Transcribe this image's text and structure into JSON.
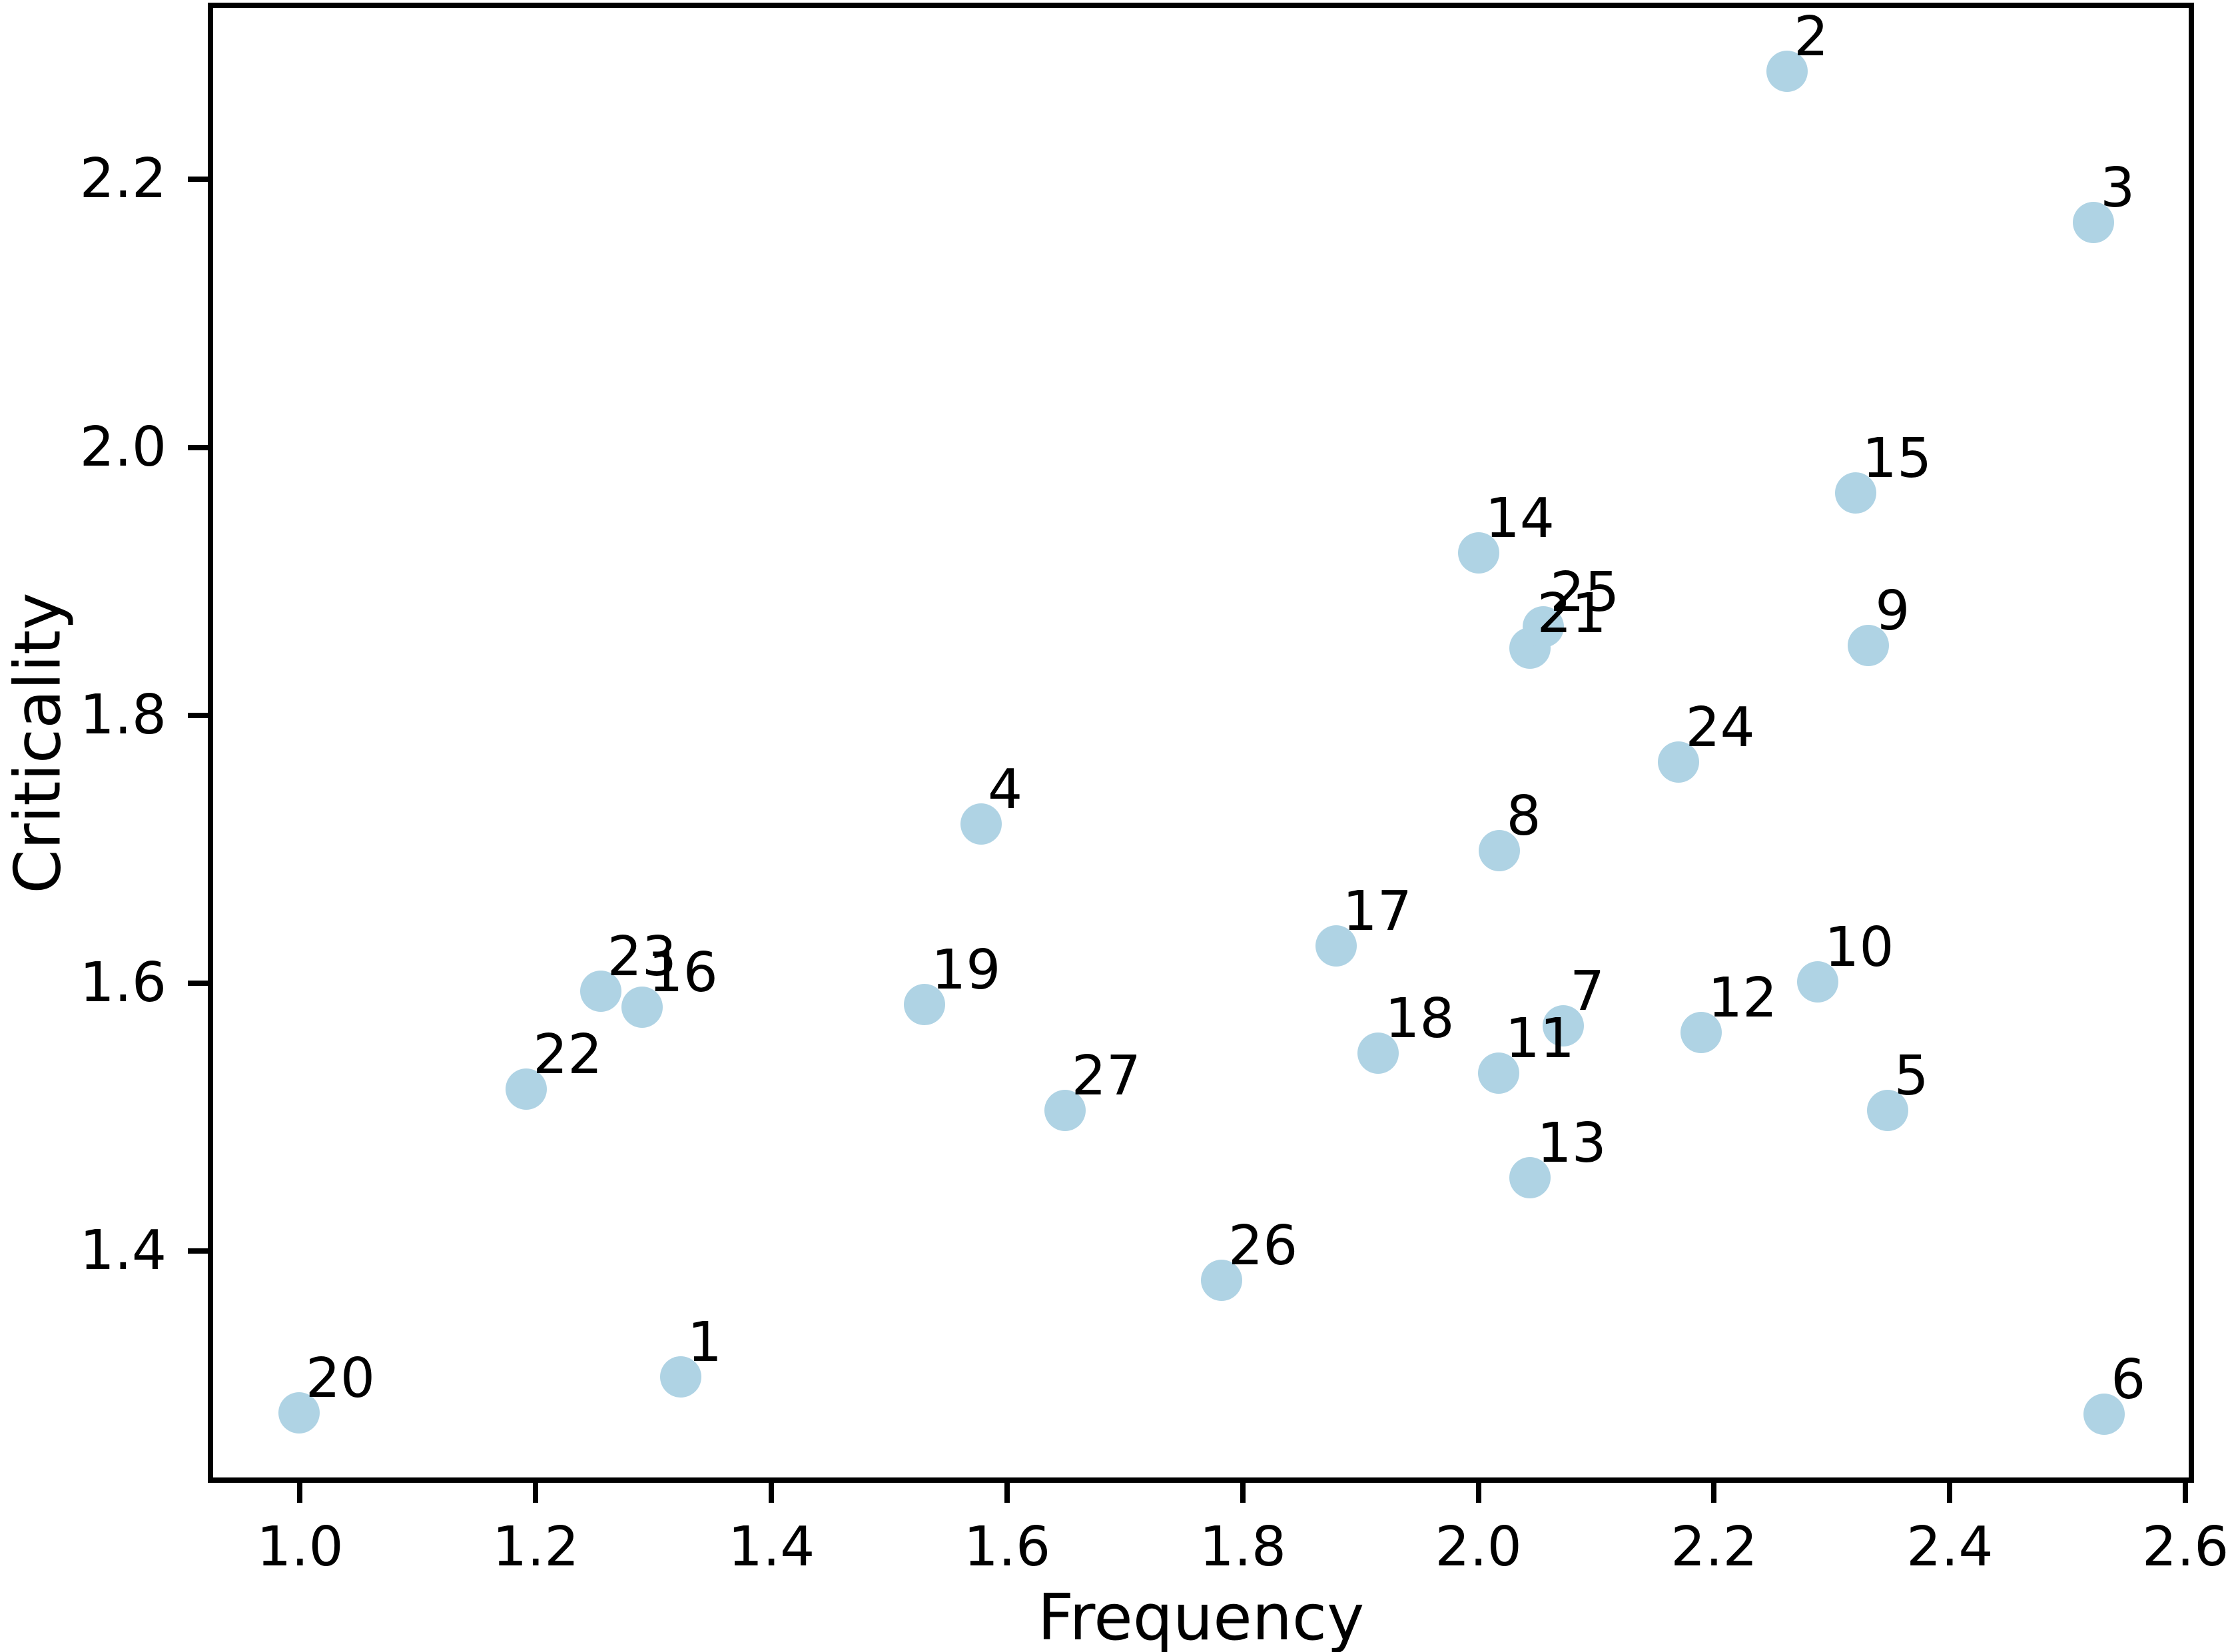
{
  "chart_data": {
    "type": "scatter",
    "title": "",
    "xlabel": "Frequency",
    "ylabel": "Criticality",
    "xlim": [
      0.924,
      2.605
    ],
    "ylim": [
      1.229,
      2.33
    ],
    "grid": false,
    "legend": null,
    "marker": {
      "color": "#afd3e4",
      "radius_px": 31
    },
    "x_ticks": [
      {
        "value": 1.0,
        "label": "1.0"
      },
      {
        "value": 1.2,
        "label": "1.2"
      },
      {
        "value": 1.4,
        "label": "1.4"
      },
      {
        "value": 1.6,
        "label": "1.6"
      },
      {
        "value": 1.8,
        "label": "1.8"
      },
      {
        "value": 2.0,
        "label": "2.0"
      },
      {
        "value": 2.2,
        "label": "2.2"
      },
      {
        "value": 2.4,
        "label": "2.4"
      },
      {
        "value": 2.6,
        "label": "2.6"
      }
    ],
    "y_ticks": [
      {
        "value": 1.4,
        "label": "1.4"
      },
      {
        "value": 1.6,
        "label": "1.6"
      },
      {
        "value": 1.8,
        "label": "1.8"
      },
      {
        "value": 2.0,
        "label": "2.0"
      },
      {
        "value": 2.2,
        "label": "2.2"
      }
    ],
    "points": [
      {
        "label": "1",
        "x": 1.323,
        "y": 1.306
      },
      {
        "label": "2",
        "x": 2.262,
        "y": 2.281
      },
      {
        "label": "3",
        "x": 2.522,
        "y": 2.168
      },
      {
        "label": "4",
        "x": 1.578,
        "y": 1.719
      },
      {
        "label": "5",
        "x": 2.347,
        "y": 1.505
      },
      {
        "label": "6",
        "x": 2.531,
        "y": 1.278
      },
      {
        "label": "7",
        "x": 2.072,
        "y": 1.568
      },
      {
        "label": "8",
        "x": 2.018,
        "y": 1.699
      },
      {
        "label": "9",
        "x": 2.331,
        "y": 1.852
      },
      {
        "label": "10",
        "x": 2.288,
        "y": 1.601
      },
      {
        "label": "11",
        "x": 2.017,
        "y": 1.533
      },
      {
        "label": "12",
        "x": 2.189,
        "y": 1.563
      },
      {
        "label": "13",
        "x": 2.044,
        "y": 1.455
      },
      {
        "label": "14",
        "x": 2.0,
        "y": 1.921
      },
      {
        "label": "15",
        "x": 2.32,
        "y": 1.966
      },
      {
        "label": "16",
        "x": 1.29,
        "y": 1.582
      },
      {
        "label": "17",
        "x": 1.879,
        "y": 1.628
      },
      {
        "label": "18",
        "x": 1.915,
        "y": 1.548
      },
      {
        "label": "19",
        "x": 1.53,
        "y": 1.584
      },
      {
        "label": "20",
        "x": 0.999,
        "y": 1.279
      },
      {
        "label": "21",
        "x": 2.044,
        "y": 1.85
      },
      {
        "label": "22",
        "x": 1.192,
        "y": 1.521
      },
      {
        "label": "23",
        "x": 1.255,
        "y": 1.594
      },
      {
        "label": "24",
        "x": 2.17,
        "y": 1.765
      },
      {
        "label": "25",
        "x": 2.055,
        "y": 1.866
      },
      {
        "label": "26",
        "x": 1.782,
        "y": 1.378
      },
      {
        "label": "27",
        "x": 1.649,
        "y": 1.505
      }
    ]
  }
}
